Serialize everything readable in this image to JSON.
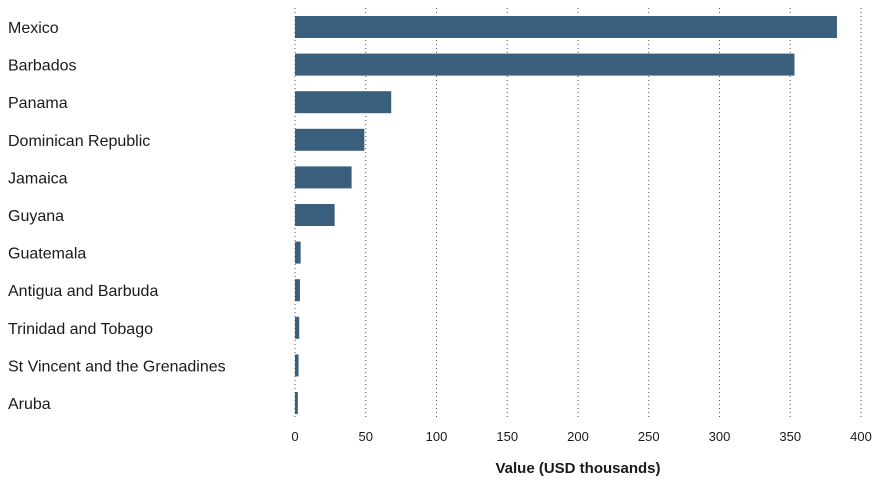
{
  "chart_data": {
    "type": "bar",
    "orientation": "horizontal",
    "categories": [
      "Mexico",
      "Barbados",
      "Panama",
      "Dominican Republic",
      "Jamaica",
      "Guyana",
      "Guatemala",
      "Antigua and Barbuda",
      "Trinidad and Tobago",
      "St Vincent and the Grenadines",
      "Aruba"
    ],
    "values": [
      383,
      353,
      68,
      49,
      40,
      28,
      4,
      3.5,
      3,
      2.5,
      2
    ],
    "xlabel": "Value (USD thousands)",
    "ylabel": "",
    "xlim": [
      0,
      400
    ],
    "xticks": [
      0,
      50,
      100,
      150,
      200,
      250,
      300,
      350,
      400
    ],
    "grid": "vertical dotted",
    "bar_color": "#3a5f7c"
  }
}
